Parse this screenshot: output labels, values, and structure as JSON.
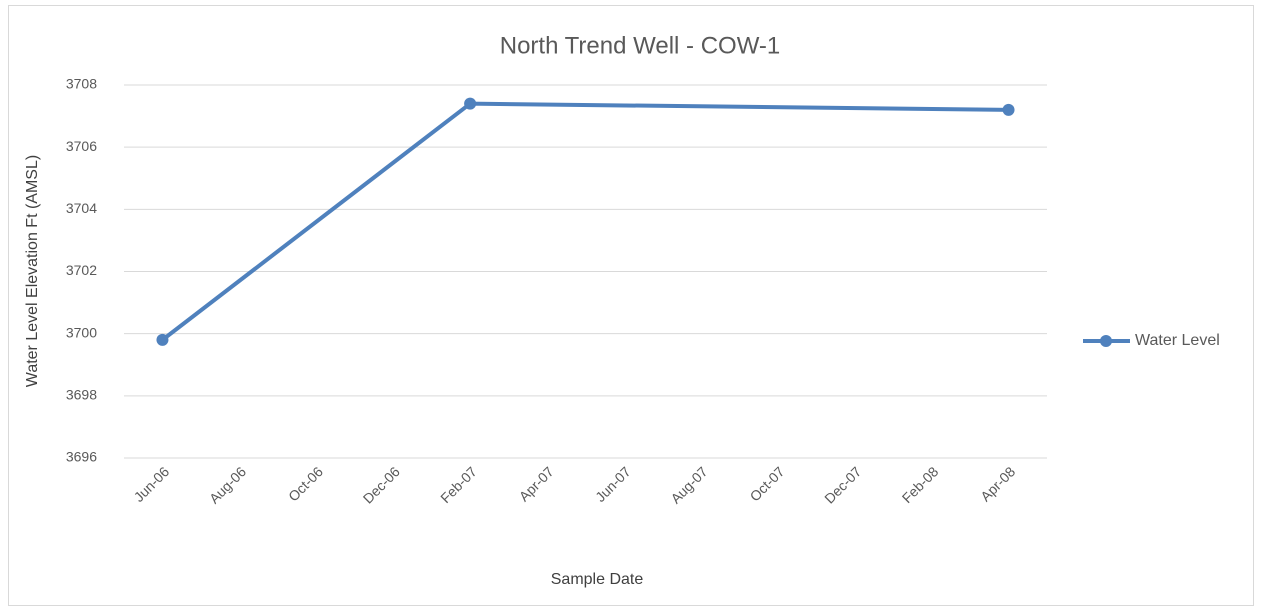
{
  "chart_data": {
    "type": "line",
    "title": "North Trend Well - COW-1",
    "x_label": "Sample Date",
    "y_label": "Water Level Elevation Ft (AMSL)",
    "x": [
      "Jun-06",
      "Feb-07",
      "Apr-08"
    ],
    "series": [
      {
        "name": "Water Level",
        "color": "#4f81bd",
        "values": [
          3699.8,
          3707.4,
          3707.2
        ]
      }
    ],
    "xticks": [
      "Jun-06",
      "Aug-06",
      "Oct-06",
      "Dec-06",
      "Feb-07",
      "Apr-07",
      "Jun-07",
      "Aug-07",
      "Oct-07",
      "Dec-07",
      "Feb-08",
      "Apr-08"
    ],
    "ylim": [
      3696,
      3708
    ],
    "yticks": [
      3696,
      3698,
      3700,
      3702,
      3704,
      3706,
      3708
    ],
    "grid": true,
    "legend": "right"
  }
}
